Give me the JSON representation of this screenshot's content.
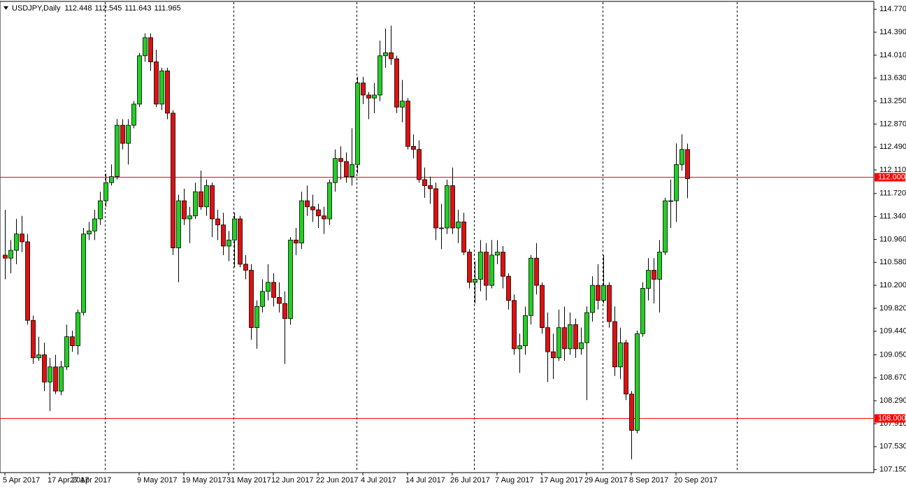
{
  "chart_data": {
    "type": "candlestick",
    "title": "USDJPY,Daily",
    "categories": [
      "5 Apr 2017",
      null,
      null,
      null,
      null,
      null,
      null,
      null,
      "17 Apr 2017",
      null,
      null,
      null,
      "27 Apr 2017",
      null,
      null,
      null,
      null,
      null,
      null,
      null,
      null,
      null,
      null,
      null,
      "9 May 2017",
      null,
      null,
      null,
      null,
      null,
      null,
      null,
      "19 May 2017",
      null,
      null,
      null,
      null,
      null,
      null,
      null,
      "31 May 2017",
      null,
      null,
      null,
      null,
      null,
      null,
      null,
      "12 Jun 2017",
      null,
      null,
      null,
      null,
      null,
      null,
      null,
      "22 Jun 2017",
      null,
      null,
      null,
      null,
      null,
      null,
      null,
      "4 Jul 2017",
      null,
      null,
      null,
      null,
      null,
      null,
      null,
      "14 Jul 2017",
      null,
      null,
      null,
      null,
      null,
      null,
      null,
      "26 Jul 2017",
      null,
      null,
      null,
      null,
      null,
      null,
      null,
      "7 Aug 2017",
      null,
      null,
      null,
      null,
      null,
      null,
      null,
      "17 Aug 2017",
      null,
      null,
      null,
      null,
      null,
      null,
      null,
      "29 Aug 2017",
      null,
      null,
      null,
      null,
      null,
      null,
      null,
      "8 Sep 2017",
      null,
      null,
      null,
      null,
      null,
      null,
      null,
      "20 Sep 2017",
      null,
      null
    ],
    "open": [
      110.7,
      110.65,
      110.78,
      111.05,
      110.92,
      109.62,
      109.0,
      109.05,
      108.6,
      108.85,
      108.45,
      108.85,
      109.35,
      109.2,
      109.75,
      111.05,
      111.1,
      111.3,
      111.6,
      111.9,
      112.0,
      112.85,
      112.55,
      112.85,
      113.2,
      114.0,
      114.3,
      113.9,
      113.2,
      113.75,
      113.05,
      110.82,
      111.6,
      111.3,
      111.35,
      111.75,
      111.5,
      111.85,
      111.3,
      111.2,
      110.85,
      110.95,
      111.3,
      110.55,
      110.45,
      109.5,
      109.85,
      110.1,
      110.25,
      110.0,
      109.9,
      109.65,
      110.95,
      110.9,
      111.6,
      111.5,
      111.45,
      111.35,
      111.3,
      111.9,
      112.3,
      112.25,
      112.0,
      112.2,
      113.55,
      113.35,
      113.3,
      113.35,
      114.0,
      114.05,
      113.95,
      113.15,
      113.25,
      112.5,
      112.45,
      111.95,
      111.85,
      111.8,
      111.15,
      111.15,
      111.85,
      111.15,
      111.25,
      110.75,
      110.25,
      110.3,
      110.75,
      110.2,
      110.7,
      110.75,
      110.35,
      109.95,
      109.15,
      109.2,
      109.7,
      110.65,
      110.2,
      109.5,
      109.1,
      109.0,
      109.5,
      109.15,
      109.55,
      109.15,
      109.25,
      109.75,
      110.2,
      109.95,
      110.2,
      109.6,
      108.85,
      109.25,
      108.4,
      107.8,
      109.4,
      110.15,
      110.45,
      110.3,
      110.75,
      111.6,
      111.6,
      112.2,
      112.448
    ],
    "high": [
      111.45,
      110.95,
      111.3,
      111.35,
      111.05,
      109.7,
      109.35,
      109.25,
      109.0,
      109.05,
      108.95,
      109.55,
      109.45,
      109.8,
      111.15,
      111.25,
      111.45,
      111.75,
      112.05,
      112.2,
      112.95,
      112.95,
      112.95,
      113.25,
      114.05,
      114.37,
      114.37,
      114.1,
      113.8,
      113.8,
      113.1,
      111.7,
      111.8,
      111.5,
      111.9,
      112.1,
      111.95,
      111.9,
      111.45,
      111.4,
      111.1,
      111.4,
      111.35,
      110.7,
      110.55,
      109.95,
      110.3,
      110.55,
      110.4,
      110.25,
      110.1,
      111.0,
      111.15,
      111.75,
      111.85,
      111.7,
      111.55,
      111.5,
      111.95,
      112.45,
      112.5,
      112.4,
      112.8,
      113.65,
      113.65,
      113.4,
      113.55,
      114.25,
      114.45,
      114.5,
      114.0,
      113.6,
      113.3,
      112.7,
      112.6,
      112.15,
      112.0,
      111.9,
      111.55,
      111.95,
      112.15,
      111.45,
      111.4,
      110.8,
      110.6,
      110.95,
      110.9,
      110.95,
      110.95,
      110.85,
      110.4,
      110.05,
      109.4,
      109.85,
      110.7,
      110.9,
      110.25,
      109.75,
      109.4,
      109.8,
      109.85,
      109.75,
      109.65,
      109.5,
      109.85,
      110.35,
      110.55,
      110.7,
      110.25,
      109.85,
      109.5,
      109.3,
      108.45,
      109.45,
      110.25,
      110.65,
      110.65,
      110.95,
      111.65,
      111.95,
      112.55,
      112.7,
      112.545
    ],
    "low": [
      110.3,
      110.4,
      110.55,
      110.75,
      109.55,
      108.9,
      108.95,
      108.45,
      108.12,
      108.4,
      108.38,
      108.8,
      109.1,
      109.05,
      109.7,
      110.95,
      110.95,
      111.2,
      111.5,
      111.85,
      111.95,
      112.45,
      112.2,
      112.8,
      113.15,
      113.9,
      113.75,
      113.15,
      113.1,
      112.95,
      110.7,
      110.25,
      111.2,
      110.9,
      111.3,
      111.45,
      111.35,
      111.0,
      110.95,
      110.7,
      110.6,
      110.5,
      110.5,
      110.3,
      109.3,
      109.15,
      109.75,
      109.95,
      109.85,
      109.75,
      108.9,
      109.55,
      110.7,
      110.8,
      111.35,
      111.25,
      111.15,
      111.05,
      111.2,
      111.75,
      111.95,
      111.9,
      111.85,
      112.05,
      113.2,
      112.95,
      113.05,
      113.25,
      113.8,
      113.85,
      113.05,
      112.9,
      112.45,
      112.3,
      111.9,
      111.65,
      111.55,
      110.95,
      110.8,
      111.05,
      111.05,
      110.9,
      110.7,
      110.15,
      109.9,
      110.1,
      109.95,
      110.15,
      110.55,
      110.15,
      109.8,
      109.05,
      108.75,
      109.05,
      109.55,
      110.05,
      109.4,
      108.6,
      108.65,
      108.95,
      108.95,
      109.05,
      109.0,
      109.05,
      108.3,
      109.6,
      109.8,
      109.9,
      109.5,
      108.7,
      108.65,
      108.3,
      107.32,
      107.75,
      109.35,
      109.95,
      109.9,
      109.75,
      110.7,
      111.15,
      111.25,
      112.1,
      111.643
    ],
    "close": [
      110.65,
      110.78,
      111.05,
      110.92,
      109.62,
      109.0,
      109.05,
      108.6,
      108.85,
      108.45,
      108.85,
      109.35,
      109.2,
      109.75,
      111.05,
      111.1,
      111.3,
      111.6,
      111.9,
      112.0,
      112.85,
      112.55,
      112.85,
      113.2,
      114.0,
      114.3,
      113.9,
      113.2,
      113.75,
      113.05,
      110.82,
      111.6,
      111.3,
      111.35,
      111.75,
      111.5,
      111.85,
      111.3,
      111.2,
      110.85,
      110.95,
      111.3,
      110.55,
      110.45,
      109.5,
      109.85,
      110.1,
      110.25,
      110.0,
      109.9,
      109.65,
      110.95,
      110.9,
      111.6,
      111.5,
      111.45,
      111.35,
      111.3,
      111.9,
      112.3,
      112.25,
      112.0,
      112.2,
      113.55,
      113.35,
      113.3,
      113.35,
      114.0,
      114.05,
      113.95,
      113.15,
      113.25,
      112.5,
      112.45,
      111.95,
      111.85,
      111.8,
      111.15,
      111.15,
      111.85,
      111.15,
      111.25,
      110.75,
      110.25,
      110.3,
      110.75,
      110.2,
      110.7,
      110.75,
      110.35,
      109.95,
      109.15,
      109.2,
      109.7,
      110.65,
      110.2,
      109.5,
      109.1,
      109.0,
      109.5,
      109.15,
      109.55,
      109.15,
      109.25,
      109.75,
      110.2,
      109.95,
      110.2,
      109.6,
      108.85,
      109.25,
      108.4,
      107.8,
      109.4,
      110.15,
      110.45,
      110.3,
      110.75,
      111.6,
      111.6,
      112.2,
      112.45,
      111.965
    ],
    "up_color": "#22d022",
    "down_color": "#e01010",
    "ylim": [
      107.1,
      114.9
    ],
    "yticks": [
      {
        "value": 114.77,
        "label": "114.770"
      },
      {
        "value": 114.39,
        "label": "114.390"
      },
      {
        "value": 114.01,
        "label": "114.010"
      },
      {
        "value": 113.63,
        "label": "113.630"
      },
      {
        "value": 113.25,
        "label": "113.250"
      },
      {
        "value": 112.87,
        "label": "112.870"
      },
      {
        "value": 112.49,
        "label": "112.490"
      },
      {
        "value": 112.11,
        "label": "112.110"
      },
      {
        "value": 111.72,
        "label": "111.720"
      },
      {
        "value": 111.34,
        "label": "111.340"
      },
      {
        "value": 110.96,
        "label": "110.960"
      },
      {
        "value": 110.58,
        "label": "110.580"
      },
      {
        "value": 110.2,
        "label": "110.200"
      },
      {
        "value": 109.82,
        "label": "109.820"
      },
      {
        "value": 109.44,
        "label": "109.440"
      },
      {
        "value": 109.05,
        "label": "109.050"
      },
      {
        "value": 108.67,
        "label": "108.670"
      },
      {
        "value": 108.29,
        "label": "108.290"
      },
      {
        "value": 107.91,
        "label": "107.910"
      },
      {
        "value": 107.53,
        "label": "107.530"
      },
      {
        "value": 107.15,
        "label": "107.150"
      }
    ],
    "levels": [
      {
        "value": 112,
        "label": "112.000"
      },
      {
        "value": 108,
        "label": "108.000"
      }
    ],
    "level_color": "#ff0000"
  }
}
